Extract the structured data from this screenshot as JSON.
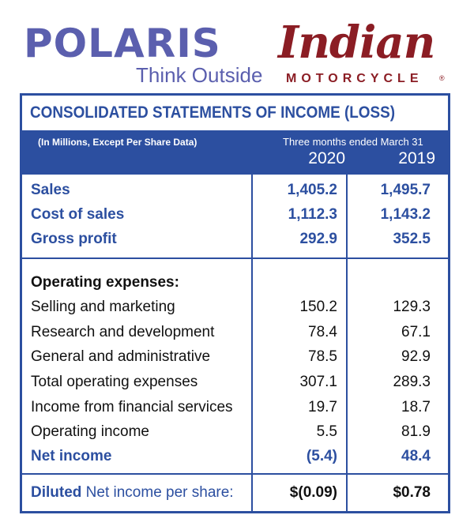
{
  "logos": {
    "polaris_name": "POLARIS",
    "polaris_tagline": "Think Outside",
    "indian_name": "Indian",
    "indian_sub": "MOTORCYCLE",
    "indian_registered": "®"
  },
  "statement": {
    "title": "CONSOLIDATED STATEMENTS OF INCOME (LOSS)",
    "units_note": "(In Millions, Except Per Share Data)",
    "period_label": "Three months ended March 31",
    "year_1": "2020",
    "year_2": "2019",
    "colors": {
      "accent": "#2c4fa0",
      "polaris": "#5b5fae",
      "indian": "#8b1d24"
    }
  },
  "rows": {
    "sales": {
      "label": "Sales",
      "v2020": "1,405.2",
      "v2019": "1,495.7"
    },
    "cost_of_sales": {
      "label": "Cost of sales",
      "v2020": "1,112.3",
      "v2019": "1,143.2"
    },
    "gross_profit": {
      "label": "Gross profit",
      "v2020": "292.9",
      "v2019": "352.5"
    },
    "operating_expenses_heading": {
      "label": "Operating expenses:"
    },
    "selling_marketing": {
      "label": "Selling and marketing",
      "v2020": "150.2",
      "v2019": "129.3"
    },
    "research_development": {
      "label": "Research and development",
      "v2020": "78.4",
      "v2019": "67.1"
    },
    "general_admin": {
      "label": "General and administrative",
      "v2020": "78.5",
      "v2019": "92.9"
    },
    "total_operating_expenses": {
      "label": "Total operating expenses",
      "v2020": "307.1",
      "v2019": "289.3"
    },
    "financial_services_income": {
      "label": "Income from financial services",
      "v2020": "19.7",
      "v2019": "18.7"
    },
    "operating_income": {
      "label": "Operating income",
      "v2020": "5.5",
      "v2019": "81.9"
    },
    "net_income": {
      "label": "Net income",
      "v2020": "(5.4)",
      "v2019": "48.4"
    },
    "diluted_eps": {
      "label_bold": "Diluted",
      "label_rest": " Net income per share:",
      "v2020": "$(0.09)",
      "v2019": "$0.78"
    }
  }
}
